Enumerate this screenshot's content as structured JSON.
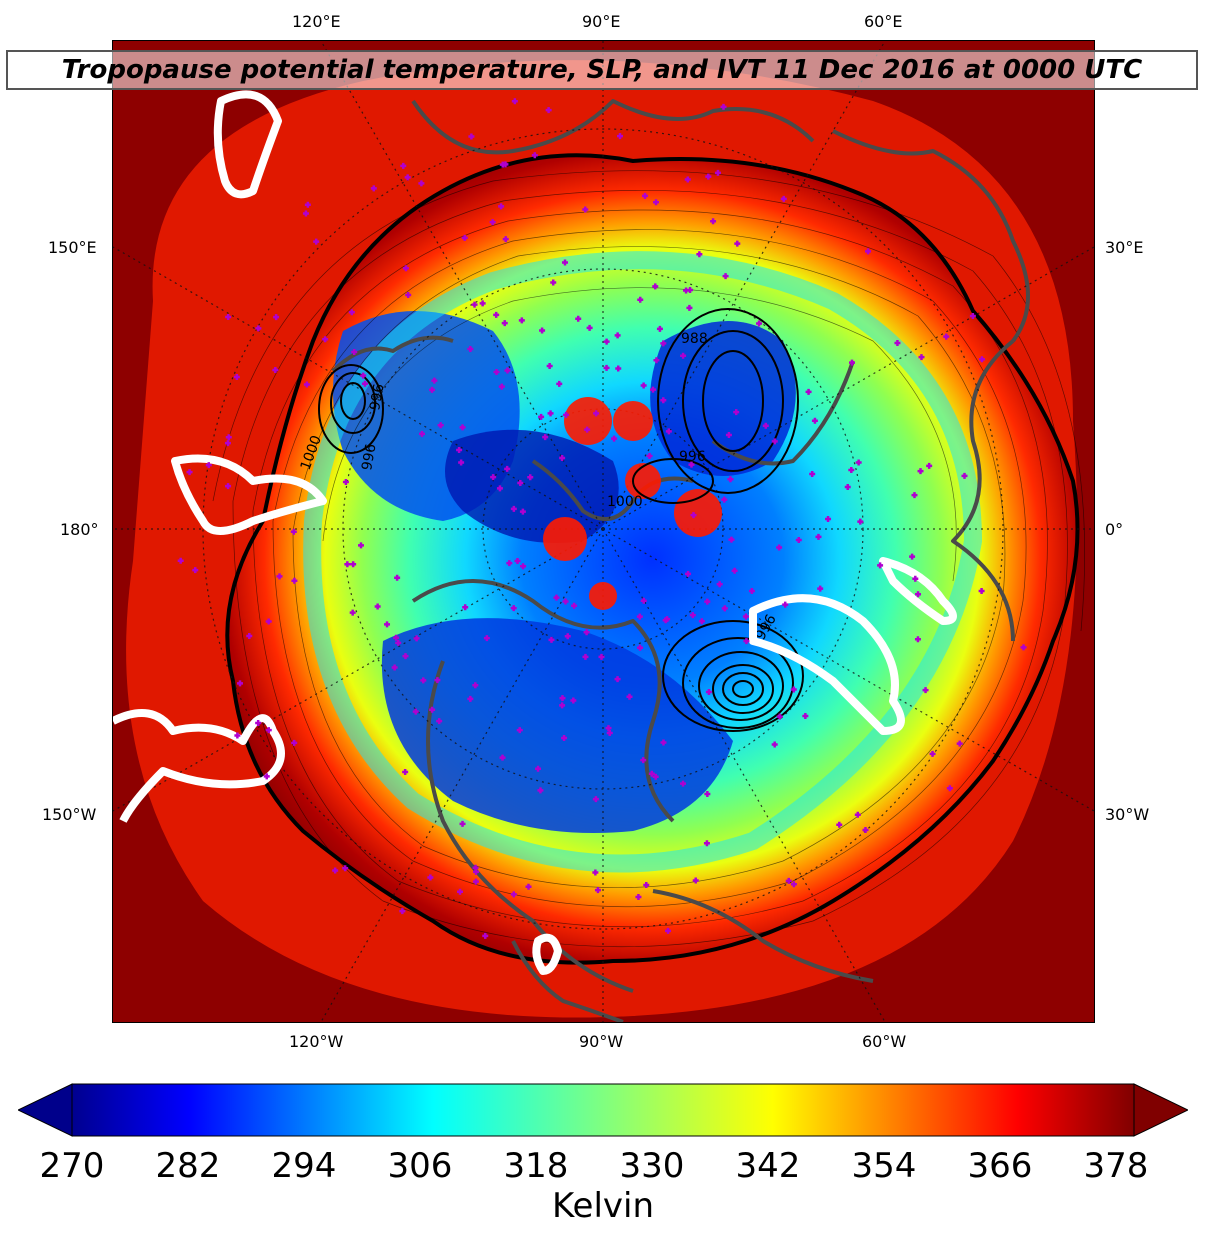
{
  "title": "Tropopause potential temperature, SLP, and IVT 11 Dec 2016 at 0000 UTC",
  "top_labels": [
    "120°E",
    "90°E",
    "60°E"
  ],
  "bottom_labels": [
    "120°W",
    "90°W",
    "60°W"
  ],
  "left_labels": [
    "150°E",
    "180°",
    "150°W"
  ],
  "right_labels": [
    "30°E",
    "0°",
    "30°W"
  ],
  "colorbar": {
    "ticks": [
      "270",
      "282",
      "294",
      "306",
      "318",
      "330",
      "342",
      "354",
      "366",
      "378"
    ],
    "unit": "Kelvin",
    "colormap": "jet",
    "extend": "both"
  },
  "slp_contour_labels": [
    "1000",
    "996",
    "996",
    "1000",
    "996",
    "996",
    "988"
  ],
  "colors": {
    "cold": "#00008b",
    "mid": "#3dfcc0",
    "warm": "#8b0000",
    "coast": "#4a4a4a",
    "stations": "#b000d0",
    "ivt": "#ffffff",
    "high_theta_blobs": "#ff1a00"
  }
}
